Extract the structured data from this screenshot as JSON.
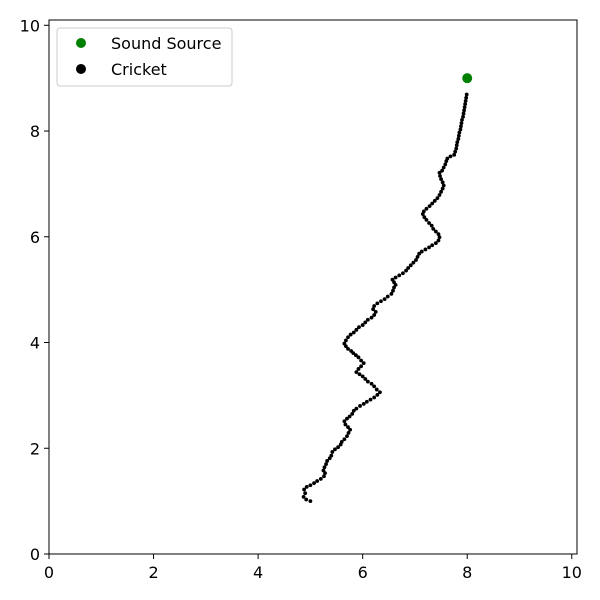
{
  "chart_data": {
    "type": "scatter",
    "xlim": [
      0,
      10.1
    ],
    "ylim": [
      0,
      10.1
    ],
    "x_ticks": [
      "0",
      "2",
      "4",
      "6",
      "8",
      "10"
    ],
    "y_ticks": [
      "0",
      "2",
      "4",
      "6",
      "8",
      "10"
    ],
    "grid": false,
    "legend_placement": "top-left",
    "legend": [
      {
        "label": "Sound Source",
        "color": "#008000"
      },
      {
        "label": "Cricket",
        "color": "#000000"
      }
    ],
    "sound_source": {
      "x": 8.0,
      "y": 9.0
    },
    "cricket_path": [
      [
        5.0,
        1.0
      ],
      [
        4.92,
        1.03
      ],
      [
        4.87,
        1.08
      ],
      [
        4.9,
        1.15
      ],
      [
        4.88,
        1.22
      ],
      [
        4.93,
        1.27
      ],
      [
        5.0,
        1.3
      ],
      [
        5.07,
        1.34
      ],
      [
        5.13,
        1.38
      ],
      [
        5.2,
        1.42
      ],
      [
        5.26,
        1.47
      ],
      [
        5.28,
        1.53
      ],
      [
        5.25,
        1.58
      ],
      [
        5.27,
        1.64
      ],
      [
        5.3,
        1.7
      ],
      [
        5.32,
        1.76
      ],
      [
        5.37,
        1.81
      ],
      [
        5.4,
        1.86
      ],
      [
        5.42,
        1.93
      ],
      [
        5.47,
        1.98
      ],
      [
        5.53,
        2.02
      ],
      [
        5.58,
        2.07
      ],
      [
        5.6,
        2.12
      ],
      [
        5.65,
        2.17
      ],
      [
        5.7,
        2.23
      ],
      [
        5.73,
        2.29
      ],
      [
        5.76,
        2.35
      ],
      [
        5.72,
        2.4
      ],
      [
        5.67,
        2.45
      ],
      [
        5.65,
        2.51
      ],
      [
        5.7,
        2.56
      ],
      [
        5.75,
        2.6
      ],
      [
        5.8,
        2.65
      ],
      [
        5.83,
        2.71
      ],
      [
        5.88,
        2.75
      ],
      [
        5.95,
        2.8
      ],
      [
        6.02,
        2.84
      ],
      [
        6.08,
        2.88
      ],
      [
        6.15,
        2.92
      ],
      [
        6.22,
        2.96
      ],
      [
        6.28,
        3.01
      ],
      [
        6.33,
        3.06
      ],
      [
        6.27,
        3.11
      ],
      [
        6.22,
        3.17
      ],
      [
        6.17,
        3.22
      ],
      [
        6.1,
        3.26
      ],
      [
        6.05,
        3.31
      ],
      [
        6.0,
        3.36
      ],
      [
        5.94,
        3.4
      ],
      [
        5.88,
        3.44
      ],
      [
        5.92,
        3.5
      ],
      [
        5.97,
        3.55
      ],
      [
        6.02,
        3.61
      ],
      [
        5.97,
        3.66
      ],
      [
        5.92,
        3.72
      ],
      [
        5.87,
        3.76
      ],
      [
        5.82,
        3.8
      ],
      [
        5.78,
        3.84
      ],
      [
        5.72,
        3.88
      ],
      [
        5.68,
        3.93
      ],
      [
        5.65,
        3.98
      ],
      [
        5.68,
        4.04
      ],
      [
        5.72,
        4.1
      ],
      [
        5.77,
        4.15
      ],
      [
        5.83,
        4.19
      ],
      [
        5.88,
        4.24
      ],
      [
        5.93,
        4.29
      ],
      [
        6.0,
        4.33
      ],
      [
        6.05,
        4.38
      ],
      [
        6.1,
        4.43
      ],
      [
        6.17,
        4.47
      ],
      [
        6.22,
        4.52
      ],
      [
        6.25,
        4.58
      ],
      [
        6.2,
        4.63
      ],
      [
        6.22,
        4.69
      ],
      [
        6.28,
        4.74
      ],
      [
        6.35,
        4.78
      ],
      [
        6.42,
        4.82
      ],
      [
        6.48,
        4.87
      ],
      [
        6.55,
        4.92
      ],
      [
        6.58,
        4.98
      ],
      [
        6.6,
        5.04
      ],
      [
        6.63,
        5.09
      ],
      [
        6.6,
        5.14
      ],
      [
        6.57,
        5.19
      ],
      [
        6.63,
        5.23
      ],
      [
        6.7,
        5.27
      ],
      [
        6.77,
        5.31
      ],
      [
        6.83,
        5.36
      ],
      [
        6.87,
        5.41
      ],
      [
        6.92,
        5.46
      ],
      [
        6.97,
        5.51
      ],
      [
        7.02,
        5.56
      ],
      [
        7.05,
        5.62
      ],
      [
        7.08,
        5.68
      ],
      [
        7.13,
        5.72
      ],
      [
        7.2,
        5.76
      ],
      [
        7.27,
        5.8
      ],
      [
        7.33,
        5.84
      ],
      [
        7.4,
        5.88
      ],
      [
        7.45,
        5.93
      ],
      [
        7.47,
        5.99
      ],
      [
        7.45,
        6.05
      ],
      [
        7.4,
        6.1
      ],
      [
        7.35,
        6.15
      ],
      [
        7.32,
        6.21
      ],
      [
        7.27,
        6.26
      ],
      [
        7.22,
        6.32
      ],
      [
        7.18,
        6.37
      ],
      [
        7.15,
        6.43
      ],
      [
        7.17,
        6.48
      ],
      [
        7.22,
        6.53
      ],
      [
        7.28,
        6.58
      ],
      [
        7.33,
        6.63
      ],
      [
        7.38,
        6.68
      ],
      [
        7.43,
        6.73
      ],
      [
        7.47,
        6.79
      ],
      [
        7.5,
        6.85
      ],
      [
        7.53,
        6.91
      ],
      [
        7.55,
        6.97
      ],
      [
        7.53,
        7.03
      ],
      [
        7.5,
        7.09
      ],
      [
        7.48,
        7.15
      ],
      [
        7.47,
        7.21
      ],
      [
        7.52,
        7.25
      ],
      [
        7.55,
        7.31
      ],
      [
        7.58,
        7.37
      ],
      [
        7.6,
        7.43
      ],
      [
        7.62,
        7.48
      ],
      [
        7.68,
        7.52
      ],
      [
        7.75,
        7.55
      ],
      [
        7.77,
        7.61
      ],
      [
        7.79,
        7.67
      ],
      [
        7.8,
        7.73
      ],
      [
        7.81,
        7.79
      ],
      [
        7.83,
        7.85
      ],
      [
        7.84,
        7.91
      ],
      [
        7.85,
        7.97
      ],
      [
        7.87,
        8.03
      ],
      [
        7.88,
        8.09
      ],
      [
        7.89,
        8.15
      ],
      [
        7.9,
        8.21
      ],
      [
        7.92,
        8.27
      ],
      [
        7.93,
        8.33
      ],
      [
        7.94,
        8.39
      ],
      [
        7.95,
        8.45
      ],
      [
        7.96,
        8.51
      ],
      [
        7.97,
        8.57
      ],
      [
        7.98,
        8.63
      ],
      [
        7.99,
        8.69
      ]
    ]
  }
}
